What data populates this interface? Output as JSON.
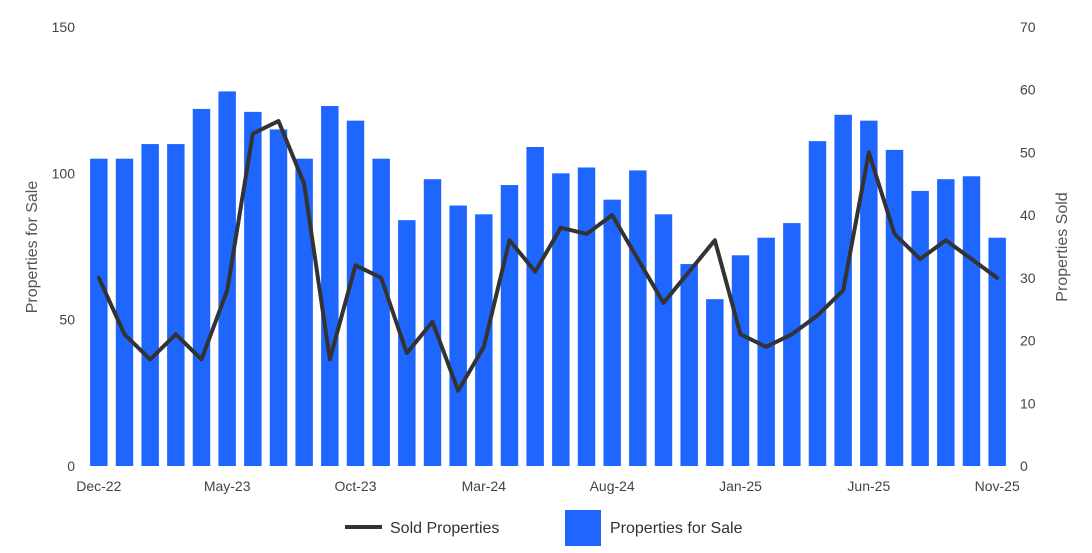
{
  "chart_data": {
    "type": "bar",
    "categories": [
      "Dec-22",
      "Jan-23",
      "Feb-23",
      "Mar-23",
      "Apr-23",
      "May-23",
      "Jun-23",
      "Jul-23",
      "Aug-23",
      "Sep-23",
      "Oct-23",
      "Nov-23",
      "Dec-23",
      "Jan-24",
      "Feb-24",
      "Mar-24",
      "Apr-24",
      "May-24",
      "Jun-24",
      "Jul-24",
      "Aug-24",
      "Sep-24",
      "Oct-24",
      "Nov-24",
      "Dec-24",
      "Jan-25",
      "Feb-25",
      "Mar-25",
      "Apr-25",
      "May-25",
      "Jun-25",
      "Jul-25",
      "Aug-25",
      "Sep-25",
      "Oct-25",
      "Nov-25"
    ],
    "x_tick_labels": [
      "Dec-22",
      "May-23",
      "Oct-23",
      "Mar-24",
      "Aug-24",
      "Jan-25",
      "Jun-25",
      "Nov-25"
    ],
    "x_tick_indices": [
      0,
      5,
      10,
      15,
      20,
      25,
      30,
      35
    ],
    "series": [
      {
        "name": "Properties for Sale",
        "type": "bar",
        "axis": "left",
        "color": "#1f66ff",
        "values": [
          105,
          105,
          110,
          110,
          122,
          128,
          121,
          115,
          105,
          123,
          118,
          105,
          84,
          98,
          89,
          86,
          96,
          109,
          100,
          102,
          91,
          101,
          86,
          69,
          57,
          72,
          78,
          83,
          111,
          120,
          118,
          108,
          94,
          98,
          99,
          78
        ]
      },
      {
        "name": "Sold Properties",
        "type": "line",
        "axis": "right",
        "color": "#333333",
        "values": [
          30,
          21,
          17,
          21,
          17,
          28,
          53,
          55,
          45,
          17,
          32,
          30,
          18,
          23,
          12,
          19,
          36,
          31,
          38,
          37,
          40,
          33,
          26,
          31,
          36,
          21,
          19,
          21,
          24,
          28,
          50,
          37,
          33,
          36,
          33,
          30
        ]
      }
    ],
    "y_left": {
      "label": "Properties for Sale",
      "ticks": [
        0,
        50,
        100,
        150
      ],
      "range": [
        0,
        150
      ]
    },
    "y_right": {
      "label": "Properties Sold",
      "ticks": [
        0,
        10,
        20,
        30,
        40,
        50,
        60,
        70
      ],
      "range": [
        0,
        70
      ]
    },
    "legend": {
      "position": "bottom",
      "line_label": "Sold Properties",
      "bar_label": "Properties for Sale"
    },
    "grid": false
  }
}
